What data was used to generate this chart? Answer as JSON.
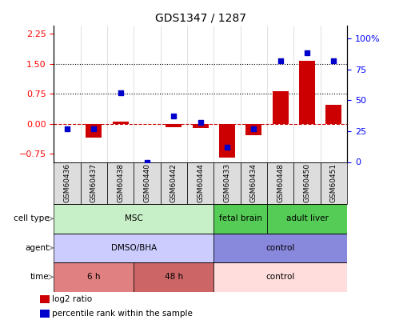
{
  "title": "GDS1347 / 1287",
  "samples": [
    "GSM60436",
    "GSM60437",
    "GSM60438",
    "GSM60440",
    "GSM60442",
    "GSM60444",
    "GSM60433",
    "GSM60434",
    "GSM60448",
    "GSM60450",
    "GSM60451"
  ],
  "log2_ratio": [
    0.0,
    -0.35,
    0.05,
    0.0,
    -0.08,
    -0.1,
    -0.85,
    -0.28,
    0.82,
    1.58,
    0.47
  ],
  "percentile_rank": [
    27,
    27,
    56,
    0,
    37,
    32,
    12,
    27,
    82,
    88,
    82
  ],
  "ylim_left": [
    -0.95,
    2.45
  ],
  "ylim_right": [
    0,
    110
  ],
  "yticks_left": [
    -0.75,
    0,
    0.75,
    1.5,
    2.25
  ],
  "yticks_right": [
    0,
    25,
    50,
    75,
    100
  ],
  "cell_type_groups": [
    {
      "label": "MSC",
      "start": 0,
      "end": 6,
      "color": "#c8f0c8"
    },
    {
      "label": "fetal brain",
      "start": 6,
      "end": 8,
      "color": "#55cc55"
    },
    {
      "label": "adult liver",
      "start": 8,
      "end": 11,
      "color": "#55cc55"
    }
  ],
  "agent_groups": [
    {
      "label": "DMSO/BHA",
      "start": 0,
      "end": 6,
      "color": "#ccccff"
    },
    {
      "label": "control",
      "start": 6,
      "end": 11,
      "color": "#8888dd"
    }
  ],
  "time_groups": [
    {
      "label": "6 h",
      "start": 0,
      "end": 3,
      "color": "#e08080"
    },
    {
      "label": "48 h",
      "start": 3,
      "end": 6,
      "color": "#cc6666"
    },
    {
      "label": "control",
      "start": 6,
      "end": 11,
      "color": "#ffdddd"
    }
  ],
  "row_labels": [
    "cell type",
    "agent",
    "time"
  ],
  "bar_color": "#cc0000",
  "dot_color": "#0000cc",
  "bar_width": 0.6
}
